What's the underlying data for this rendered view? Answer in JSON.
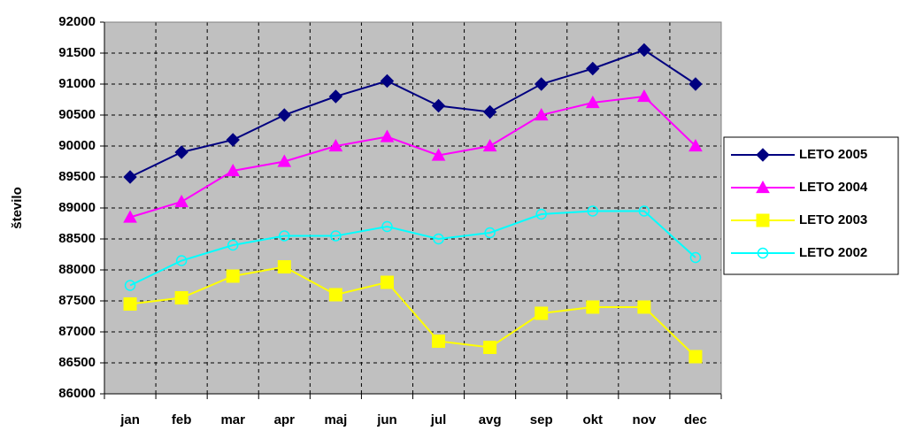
{
  "chart_data": {
    "type": "line",
    "y_label": "število",
    "categories": [
      "jan",
      "feb",
      "mar",
      "apr",
      "maj",
      "jun",
      "jul",
      "avg",
      "sep",
      "okt",
      "nov",
      "dec"
    ],
    "series": [
      {
        "name": "LETO 2005",
        "color": "#000080",
        "marker": "diamond",
        "values": [
          89500,
          89900,
          90100,
          90500,
          90800,
          91050,
          90650,
          90550,
          91000,
          91250,
          91550,
          91000
        ]
      },
      {
        "name": "LETO 2004",
        "color": "#ff00ff",
        "marker": "triangle",
        "values": [
          88850,
          89100,
          89600,
          89750,
          90000,
          90150,
          89850,
          90000,
          90500,
          90700,
          90800,
          90000
        ]
      },
      {
        "name": "LETO 2003",
        "color": "#ffff00",
        "marker": "square",
        "values": [
          87450,
          87550,
          87900,
          88050,
          87600,
          87800,
          86850,
          86750,
          87300,
          87400,
          87400,
          86600
        ]
      },
      {
        "name": "LETO 2002",
        "color": "#00ffff",
        "marker": "circle",
        "values": [
          87750,
          88150,
          88400,
          88550,
          88550,
          88700,
          88500,
          88600,
          88900,
          88950,
          88950,
          88200
        ]
      }
    ],
    "ylim": [
      86000,
      92000
    ],
    "yticks": [
      86000,
      86500,
      87000,
      87500,
      88000,
      88500,
      89000,
      89500,
      90000,
      90500,
      91000,
      91500,
      92000
    ],
    "grid": true,
    "legend": "right"
  }
}
